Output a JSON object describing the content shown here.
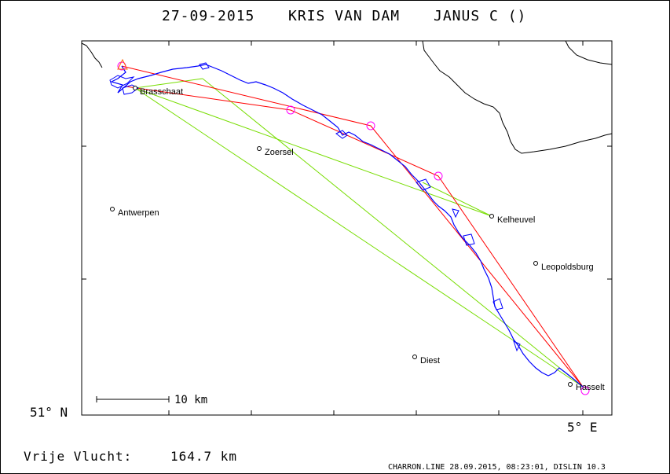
{
  "header": {
    "date": "27-09-2015",
    "pilot": "KRIS VAN DAM",
    "glider": "JANUS C ()"
  },
  "axes": {
    "lat_label": "51° N",
    "lon_label": "5° E"
  },
  "scale_bar": {
    "label": "10 km"
  },
  "summary": {
    "label": "Vrije Vlucht:",
    "value": "164.7 km"
  },
  "footer": {
    "credit": "CHARRON.LINE 28.09.2015, 08:23:01, DISLIN 10.3"
  },
  "cities": [
    {
      "name": "Brasschaat"
    },
    {
      "name": "Zoersel"
    },
    {
      "name": "Antwerpen"
    },
    {
      "name": "Kelheuvel"
    },
    {
      "name": "Leopoldsburg"
    },
    {
      "name": "Diest"
    },
    {
      "name": "Hasselt"
    }
  ],
  "colors": {
    "track": "#0000ff",
    "task_line": "#ff0000",
    "optimized_lines": "#77dd00",
    "turnpoint": "#ff00ff",
    "border": "#000000"
  }
}
